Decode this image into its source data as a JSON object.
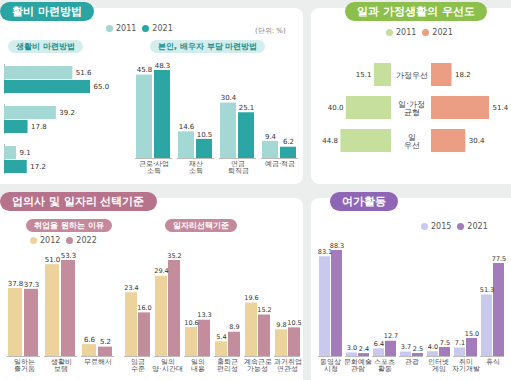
{
  "chart_data": [
    {
      "type": "bar",
      "orientation": "horizontal",
      "title": "활비 마련방법",
      "subtitle": "생활비 마련방법",
      "annotations": [
        "(단위: %)"
      ],
      "categories": [
        null,
        null,
        null
      ],
      "series": [
        {
          "name": "2011",
          "color": "#a3d8d5",
          "values": [
            51.6,
            39.2,
            9.1
          ],
          "value_labels": [
            "51.6",
            "39.2",
            "9.1"
          ]
        },
        {
          "name": "2021",
          "color": "#2ba6a4",
          "values": [
            65.0,
            17.8,
            17.2
          ],
          "value_labels": [
            "65.0",
            "17.8",
            "17.2"
          ]
        }
      ],
      "data_labels": true,
      "tick_labels": false,
      "legend": "top"
    },
    {
      "type": "bar",
      "subtitle": "본인, 배우자 부담 마련방법",
      "categories": [
        "근로·사업 소득",
        "재산 소득",
        "연금 퇴직금",
        "예금·적금"
      ],
      "series": [
        {
          "name": "2011",
          "color": "#a3d8d5",
          "values": [
            45.8,
            14.6,
            30.4,
            9.4
          ],
          "value_labels": [
            "45.8",
            "14.6",
            "30.4",
            "9.4"
          ]
        },
        {
          "name": "2021",
          "color": "#2ba6a4",
          "values": [
            48.3,
            10.5,
            25.1,
            6.2
          ],
          "value_labels": [
            "48.3",
            "10.5",
            "25.1",
            "6.2"
          ]
        }
      ],
      "data_labels": true,
      "tick_labels": "x"
    },
    {
      "type": "bar",
      "orientation": "horizontal",
      "title": "일과 가정생활의 우선도",
      "categories": [
        "가정우선",
        "일·가정 균형",
        "일 우선"
      ],
      "series": [
        {
          "name": "2011",
          "color": "#c6df9c",
          "values": [
            15.1,
            40.0,
            44.8
          ],
          "value_labels": [
            "15.1",
            "40.0",
            "44.8"
          ]
        },
        {
          "name": "2021",
          "color": "#ec9e85",
          "values": [
            18.2,
            51.4,
            30.4
          ],
          "value_labels": [
            "18.2",
            "51.4",
            "30.4"
          ]
        }
      ],
      "data_labels": true,
      "tick_labels": "y",
      "legend": "top"
    },
    {
      "type": "bar",
      "title": "업의사 및 일자리 선택기준",
      "subtitle": "취업을 원하는 이유",
      "categories": [
        "일하는 즐거움",
        "생활비 보탬",
        "무료해서"
      ],
      "series": [
        {
          "name": "2012",
          "color": "#ecd39c",
          "values": [
            37.8,
            51.0,
            6.6
          ],
          "value_labels": [
            "37.8",
            "51.0",
            "6.6"
          ]
        },
        {
          "name": "2022",
          "color": "#c48d9d",
          "values": [
            37.3,
            53.3,
            5.2
          ],
          "value_labels": [
            "37.3",
            "53.3",
            "5.2"
          ]
        }
      ],
      "data_labels": true,
      "tick_labels": "x",
      "legend": "top"
    },
    {
      "type": "bar",
      "subtitle": "일자리선택기준",
      "categories": [
        "임금 수준",
        "일의 양·시간대",
        "일의 내용",
        "출퇴근 편리성",
        "계속근로 가능성",
        "과거취업 연관성"
      ],
      "series": [
        {
          "name": "2012",
          "color": "#ecd39c",
          "values": [
            23.4,
            29.4,
            10.6,
            5.4,
            19.6,
            9.8
          ],
          "value_labels": [
            "23.4",
            "29.4",
            "10.6",
            "5.4",
            "19.6",
            "9.8"
          ]
        },
        {
          "name": "2022",
          "color": "#c48d9d",
          "values": [
            16.0,
            35.2,
            13.3,
            8.9,
            15.2,
            10.5
          ],
          "value_labels": [
            "16.0",
            "35.2",
            "13.3",
            "8.9",
            "15.2",
            "10.5"
          ]
        }
      ],
      "data_labels": true,
      "tick_labels": "x"
    },
    {
      "type": "bar",
      "title": "여가활동",
      "categories": [
        "동영상 시청",
        "문화예술 관람",
        "스포츠 활동",
        "관광",
        "인터넷 게임",
        "취미 자기개발",
        "휴식"
      ],
      "series": [
        {
          "name": "2015",
          "color": "#c9c9ee",
          "values": [
            83.1,
            3.0,
            6.4,
            3.7,
            4.0,
            7.1,
            51.3
          ],
          "value_labels": [
            "83.1",
            "3.0",
            "6.4",
            "3.7",
            "4.0",
            "7.1",
            "51.3"
          ]
        },
        {
          "name": "2021",
          "color": "#a47cbc",
          "values": [
            88.3,
            2.4,
            12.7,
            2.5,
            7.5,
            15.0,
            77.5
          ],
          "value_labels": [
            "88.3",
            "2.4",
            "12.7",
            "2.5",
            "7.5",
            "15.0",
            "77.5"
          ]
        }
      ],
      "data_labels": true,
      "tick_labels": "x",
      "legend": "top"
    }
  ]
}
